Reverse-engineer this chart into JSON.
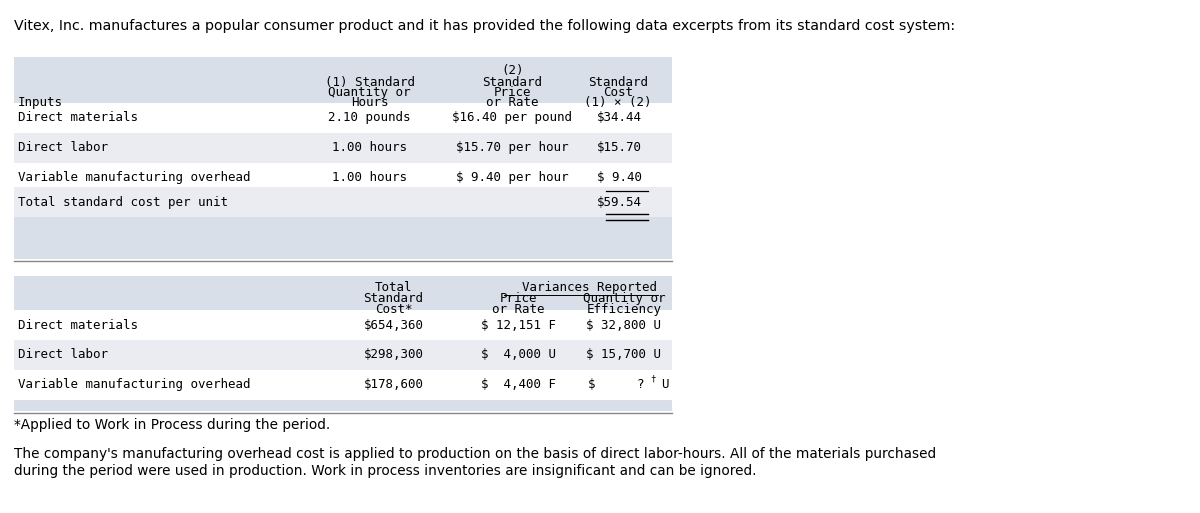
{
  "title": "Vitex, Inc. manufactures a popular consumer product and it has provided the following data excerpts from its standard cost system:",
  "footer_note": "*Applied to Work in Process during the period.",
  "footer_text": "The company's manufacturing overhead cost is applied to production on the basis of direct labor-hours. All of the materials purchased\nduring the period were used in production. Work in process inventories are insignificant and can be ignored.",
  "table1_bg": "#d9dfe8",
  "table2_bg": "#d9dfe8",
  "row_white": "#ffffff",
  "row_light": "#eaecf2",
  "bg_color": "#ffffff",
  "t1": {
    "col2_header": "(2)",
    "col1_h1": "(1) Standard",
    "col1_h2": "Quantity or",
    "col1_h3": "Hours",
    "col2_h1": "Standard",
    "col2_h2": "Price",
    "col2_h3": "or Rate",
    "col3_h1": "Standard",
    "col3_h2": "Cost",
    "col3_h3": "(1) × (2)",
    "row_label0": "Inputs",
    "rows": [
      [
        "Direct materials",
        "2.10 pounds",
        "$16.40 per pound",
        "$34.44"
      ],
      [
        "Direct labor",
        "1.00 hours",
        "$15.70 per hour",
        "$15.70"
      ],
      [
        "Variable manufacturing overhead",
        "1.00 hours",
        "$ 9.40 per hour",
        "$ 9.40"
      ]
    ],
    "total_label": "Total standard cost per unit",
    "total_value": "$59.54"
  },
  "t2": {
    "var_reported": "Variances Reported",
    "col1_h1": "Total",
    "col1_h2": "Standard",
    "col1_h3": "Cost*",
    "col2_h1": "Price",
    "col2_h2": "or Rate",
    "col3_h1": "Quantity or",
    "col3_h2": "Efficiency",
    "rows": [
      [
        "Direct materials",
        "$654,360",
        "$ 12,151 F",
        "$ 32,800 U"
      ],
      [
        "Direct labor",
        "$298,300",
        "$  4,000 U",
        "$ 15,700 U"
      ],
      [
        "Variable manufacturing overhead",
        "$178,600",
        "$  4,400 F",
        "$        ?† U"
      ]
    ]
  }
}
